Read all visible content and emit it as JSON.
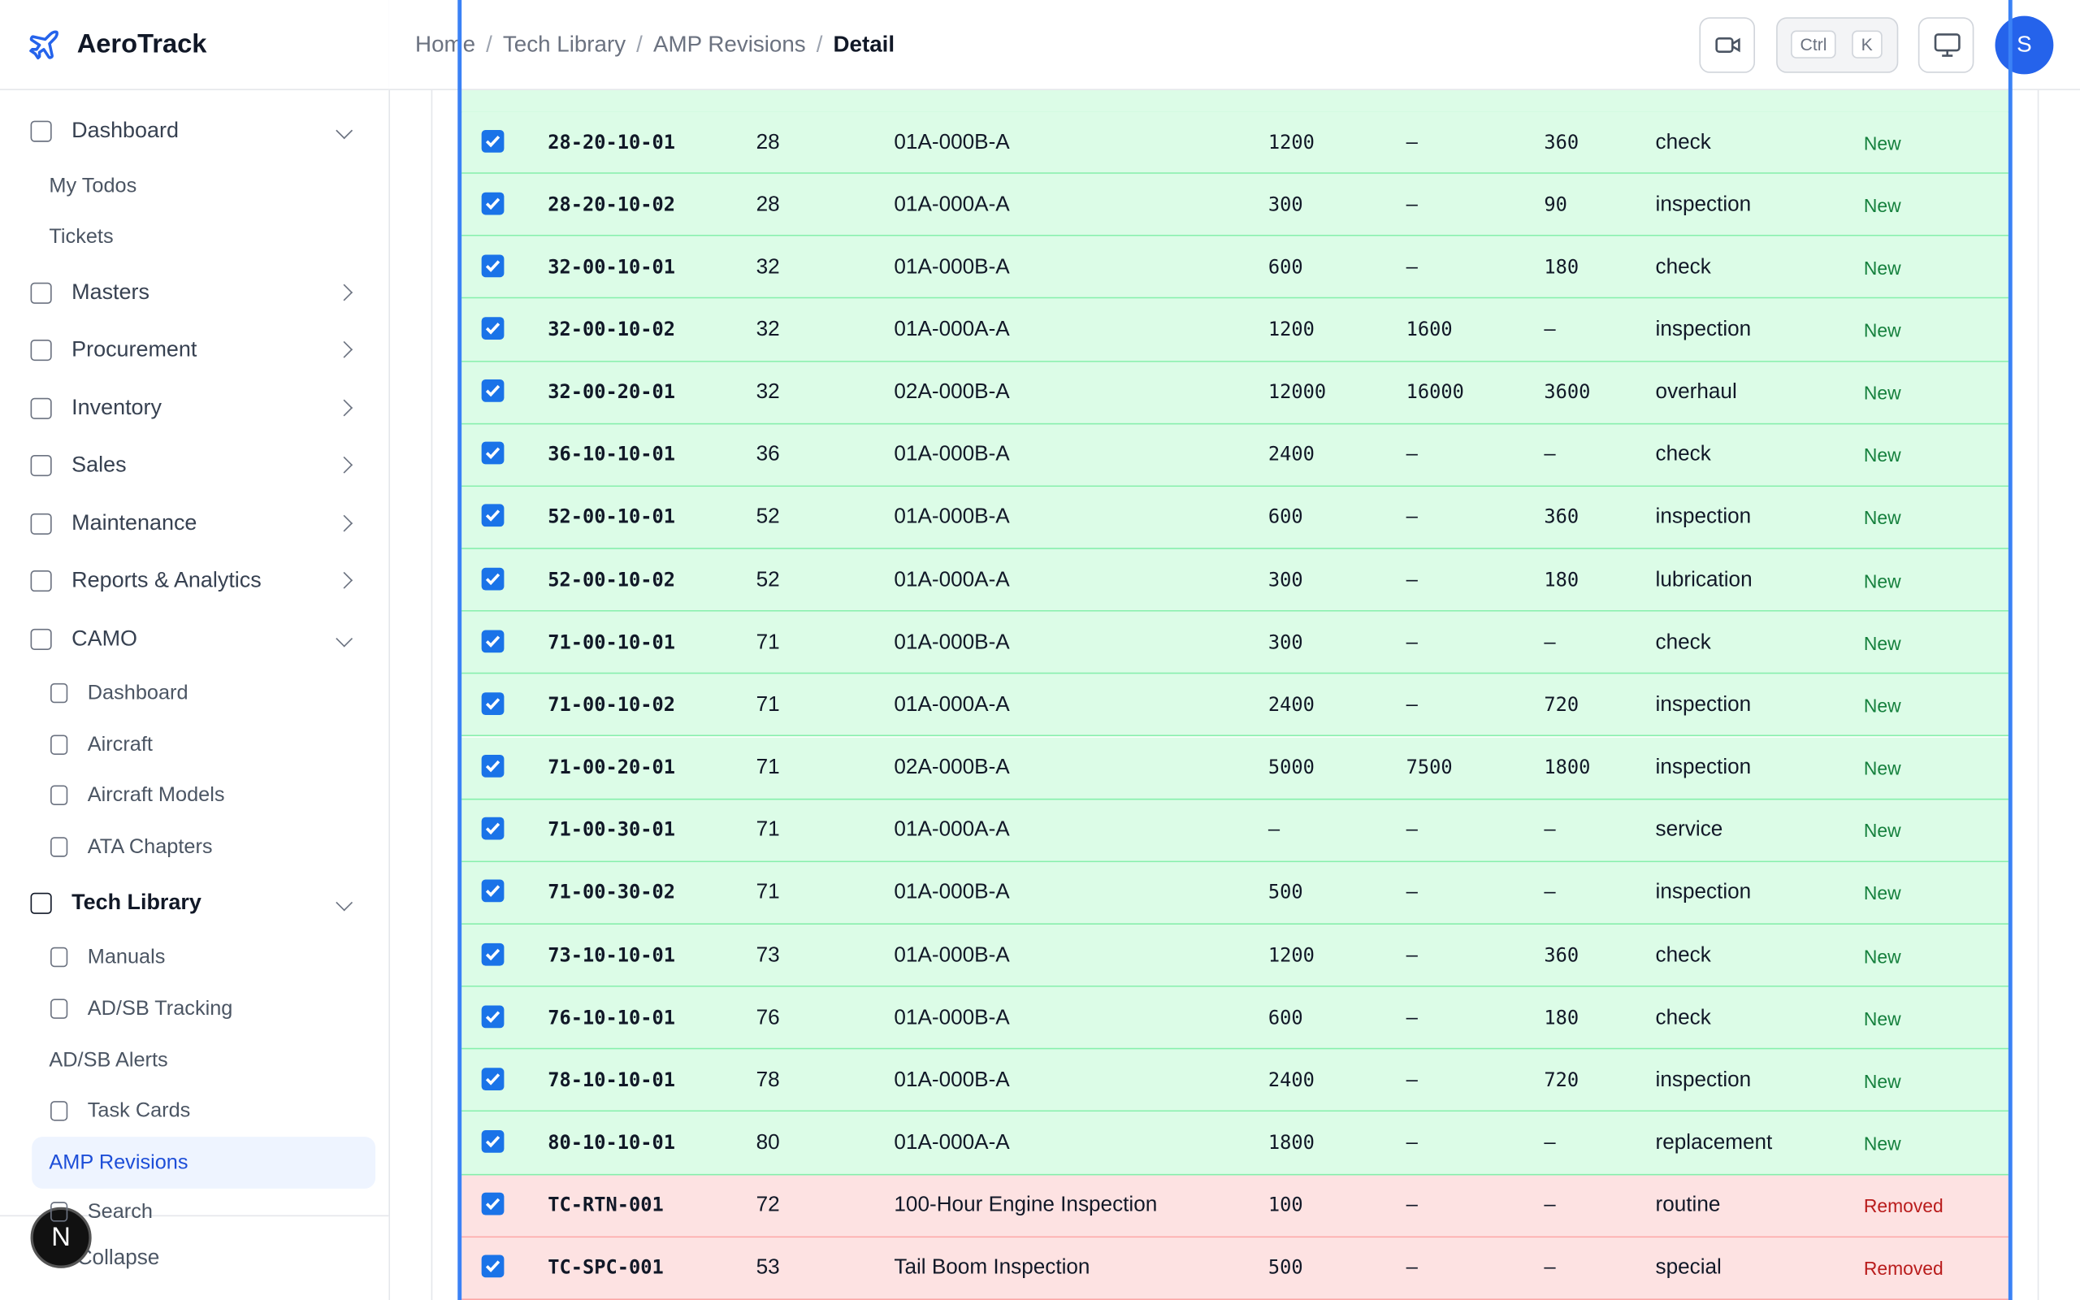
{
  "app": {
    "name": "AeroTrack"
  },
  "breadcrumb": [
    "Home",
    "Tech Library",
    "AMP Revisions",
    "Detail"
  ],
  "header": {
    "shortcut": [
      "Ctrl",
      "K"
    ],
    "avatar": "S"
  },
  "sidebar": {
    "items": [
      "Dashboard",
      "My Todos",
      "Tickets",
      "Masters",
      "Procurement",
      "Inventory",
      "Sales",
      "Maintenance",
      "Reports & Analytics",
      "CAMO",
      "Dashboard",
      "Aircraft",
      "Aircraft Models",
      "ATA Chapters",
      "Tech Library",
      "Manuals",
      "AD/SB Tracking",
      "AD/SB Alerts",
      "Task Cards",
      "AMP Revisions",
      "Search"
    ],
    "collapse": "Collapse",
    "badge": "N"
  },
  "table": {
    "rows": [
      {
        "cells": [
          "28-20-10-01",
          "28",
          "01A-000B-A",
          "1200",
          "–",
          "360",
          "check",
          "New"
        ],
        "bg": "#dcfce7",
        "status_color": "#15803d"
      },
      {
        "cells": [
          "28-20-10-02",
          "28",
          "01A-000A-A",
          "300",
          "–",
          "90",
          "inspection",
          "New"
        ],
        "bg": "#dcfce7",
        "status_color": "#15803d"
      },
      {
        "cells": [
          "32-00-10-01",
          "32",
          "01A-000B-A",
          "600",
          "–",
          "180",
          "check",
          "New"
        ],
        "bg": "#dcfce7",
        "status_color": "#15803d"
      },
      {
        "cells": [
          "32-00-10-02",
          "32",
          "01A-000A-A",
          "1200",
          "1600",
          "–",
          "inspection",
          "New"
        ],
        "bg": "#dcfce7",
        "status_color": "#15803d"
      },
      {
        "cells": [
          "32-00-20-01",
          "32",
          "02A-000B-A",
          "12000",
          "16000",
          "3600",
          "overhaul",
          "New"
        ],
        "bg": "#dcfce7",
        "status_color": "#15803d"
      },
      {
        "cells": [
          "36-10-10-01",
          "36",
          "01A-000B-A",
          "2400",
          "–",
          "–",
          "check",
          "New"
        ],
        "bg": "#dcfce7",
        "status_color": "#15803d"
      },
      {
        "cells": [
          "52-00-10-01",
          "52",
          "01A-000B-A",
          "600",
          "–",
          "360",
          "inspection",
          "New"
        ],
        "bg": "#dcfce7",
        "status_color": "#15803d"
      },
      {
        "cells": [
          "52-00-10-02",
          "52",
          "01A-000A-A",
          "300",
          "–",
          "180",
          "lubrication",
          "New"
        ],
        "bg": "#dcfce7",
        "status_color": "#15803d"
      },
      {
        "cells": [
          "71-00-10-01",
          "71",
          "01A-000B-A",
          "300",
          "–",
          "–",
          "check",
          "New"
        ],
        "bg": "#dcfce7",
        "status_color": "#15803d"
      },
      {
        "cells": [
          "71-00-10-02",
          "71",
          "01A-000A-A",
          "2400",
          "–",
          "720",
          "inspection",
          "New"
        ],
        "bg": "#dcfce7",
        "status_color": "#15803d"
      },
      {
        "cells": [
          "71-00-20-01",
          "71",
          "02A-000B-A",
          "5000",
          "7500",
          "1800",
          "inspection",
          "New"
        ],
        "bg": "#dcfce7",
        "status_color": "#15803d"
      },
      {
        "cells": [
          "71-00-30-01",
          "71",
          "01A-000A-A",
          "–",
          "–",
          "–",
          "service",
          "New"
        ],
        "bg": "#dcfce7",
        "status_color": "#15803d"
      },
      {
        "cells": [
          "71-00-30-02",
          "71",
          "01A-000B-A",
          "500",
          "–",
          "–",
          "inspection",
          "New"
        ],
        "bg": "#dcfce7",
        "status_color": "#15803d"
      },
      {
        "cells": [
          "73-10-10-01",
          "73",
          "01A-000B-A",
          "1200",
          "–",
          "360",
          "check",
          "New"
        ],
        "bg": "#dcfce7",
        "status_color": "#15803d"
      },
      {
        "cells": [
          "76-10-10-01",
          "76",
          "01A-000B-A",
          "600",
          "–",
          "180",
          "check",
          "New"
        ],
        "bg": "#dcfce7",
        "status_color": "#15803d"
      },
      {
        "cells": [
          "78-10-10-01",
          "78",
          "01A-000B-A",
          "2400",
          "–",
          "720",
          "inspection",
          "New"
        ],
        "bg": "#dcfce7",
        "status_color": "#15803d"
      },
      {
        "cells": [
          "80-10-10-01",
          "80",
          "01A-000A-A",
          "1800",
          "–",
          "–",
          "replacement",
          "New"
        ],
        "bg": "#dcfce7",
        "status_color": "#15803d"
      },
      {
        "cells": [
          "TC-RTN-001",
          "72",
          "100-Hour Engine Inspection",
          "100",
          "–",
          "–",
          "routine",
          "Removed"
        ],
        "bg": "#fde2e2",
        "status_color": "#b91c1c"
      },
      {
        "cells": [
          "TC-SPC-001",
          "53",
          "Tail Boom Inspection",
          "500",
          "–",
          "–",
          "special",
          "Removed"
        ],
        "bg": "#fde2e2",
        "status_color": "#b91c1c"
      }
    ]
  }
}
